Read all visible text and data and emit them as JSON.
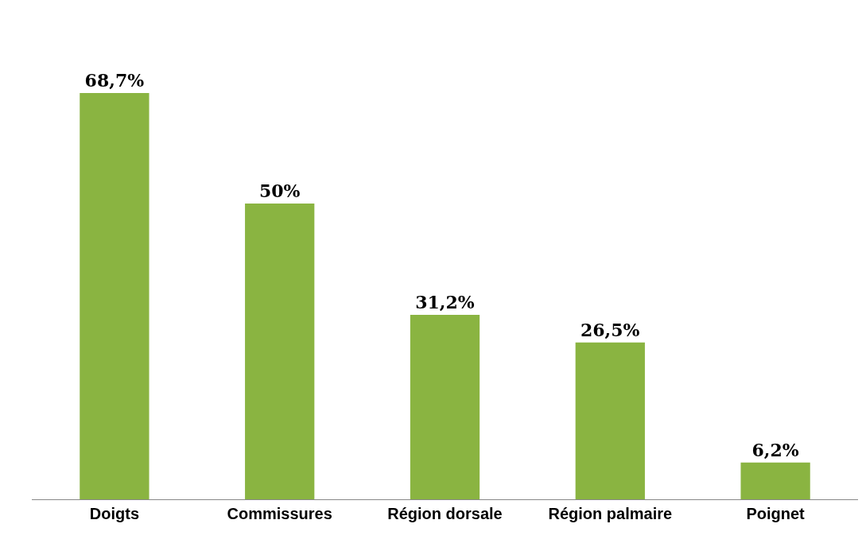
{
  "chart_data": {
    "type": "bar",
    "categories": [
      "Doigts",
      "Commissures",
      "Région dorsale",
      "Région palmaire",
      "Poignet"
    ],
    "values": [
      68.7,
      50,
      31.2,
      26.5,
      6.2
    ],
    "value_labels": [
      "68,7%",
      "50%",
      "31,2%",
      "26,5%",
      "6,2%"
    ],
    "color": "#8ab441"
  }
}
